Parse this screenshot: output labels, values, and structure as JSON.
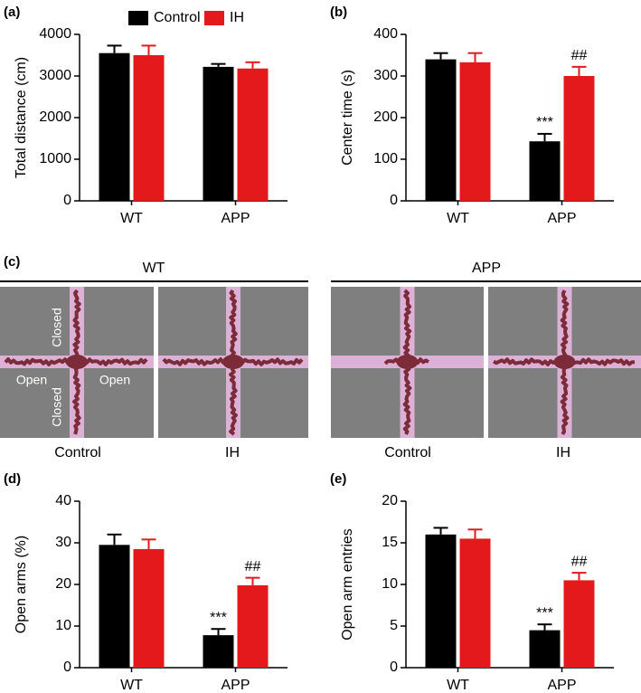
{
  "chart_data": [
    {
      "type": "bar",
      "label": "(a)",
      "ylabel": "Total distance (cm)",
      "categories": [
        "WT",
        "APP"
      ],
      "series": [
        {
          "name": "Control",
          "color": "#000000",
          "values": [
            3550,
            3220
          ],
          "errors": [
            180,
            70
          ]
        },
        {
          "name": "IH",
          "color": "#e3191c",
          "values": [
            3500,
            3180
          ],
          "errors": [
            230,
            150
          ]
        }
      ],
      "ylim": [
        0,
        4000
      ],
      "yticks": [
        0,
        1000,
        2000,
        3000,
        4000
      ],
      "legend": true
    },
    {
      "type": "bar",
      "label": "(b)",
      "ylabel": "Center time (s)",
      "categories": [
        "WT",
        "APP"
      ],
      "series": [
        {
          "color": "#000000",
          "values": [
            340,
            143
          ],
          "errors": [
            15,
            18
          ],
          "annotations": [
            null,
            "***"
          ]
        },
        {
          "color": "#e3191c",
          "values": [
            333,
            300
          ],
          "errors": [
            22,
            22
          ],
          "annotations": [
            null,
            "##"
          ]
        }
      ],
      "ylim": [
        0,
        400
      ],
      "yticks": [
        0,
        100,
        200,
        300,
        400
      ],
      "legend": false
    },
    {
      "type": "bar",
      "label": "(d)",
      "ylabel": "Open arms (%)",
      "categories": [
        "WT",
        "APP"
      ],
      "series": [
        {
          "color": "#000000",
          "values": [
            29.5,
            7.8
          ],
          "errors": [
            2.5,
            1.5
          ],
          "annotations": [
            null,
            "***"
          ]
        },
        {
          "color": "#e3191c",
          "values": [
            28.5,
            19.8
          ],
          "errors": [
            2.3,
            1.8
          ],
          "annotations": [
            null,
            "##"
          ]
        }
      ],
      "ylim": [
        0,
        40
      ],
      "yticks": [
        0,
        10,
        20,
        30,
        40
      ],
      "legend": false
    },
    {
      "type": "bar",
      "label": "(e)",
      "ylabel": "Open arm entries",
      "categories": [
        "WT",
        "APP"
      ],
      "series": [
        {
          "color": "#000000",
          "values": [
            16,
            4.5
          ],
          "errors": [
            0.8,
            0.7
          ],
          "annotations": [
            null,
            "***"
          ]
        },
        {
          "color": "#e3191c",
          "values": [
            15.5,
            10.5
          ],
          "errors": [
            1.1,
            0.9
          ],
          "annotations": [
            null,
            "##"
          ]
        }
      ],
      "ylim": [
        0,
        20
      ],
      "yticks": [
        0,
        5,
        10,
        15,
        20
      ],
      "legend": false
    }
  ],
  "maze": {
    "label": "(c)",
    "groups": [
      {
        "title": "WT",
        "conditions": [
          "Control",
          "IH"
        ]
      },
      {
        "title": "APP",
        "conditions": [
          "Control",
          "IH"
        ]
      }
    ],
    "arm_labels": [
      "Closed",
      "Open",
      "Open",
      "Closed"
    ]
  }
}
